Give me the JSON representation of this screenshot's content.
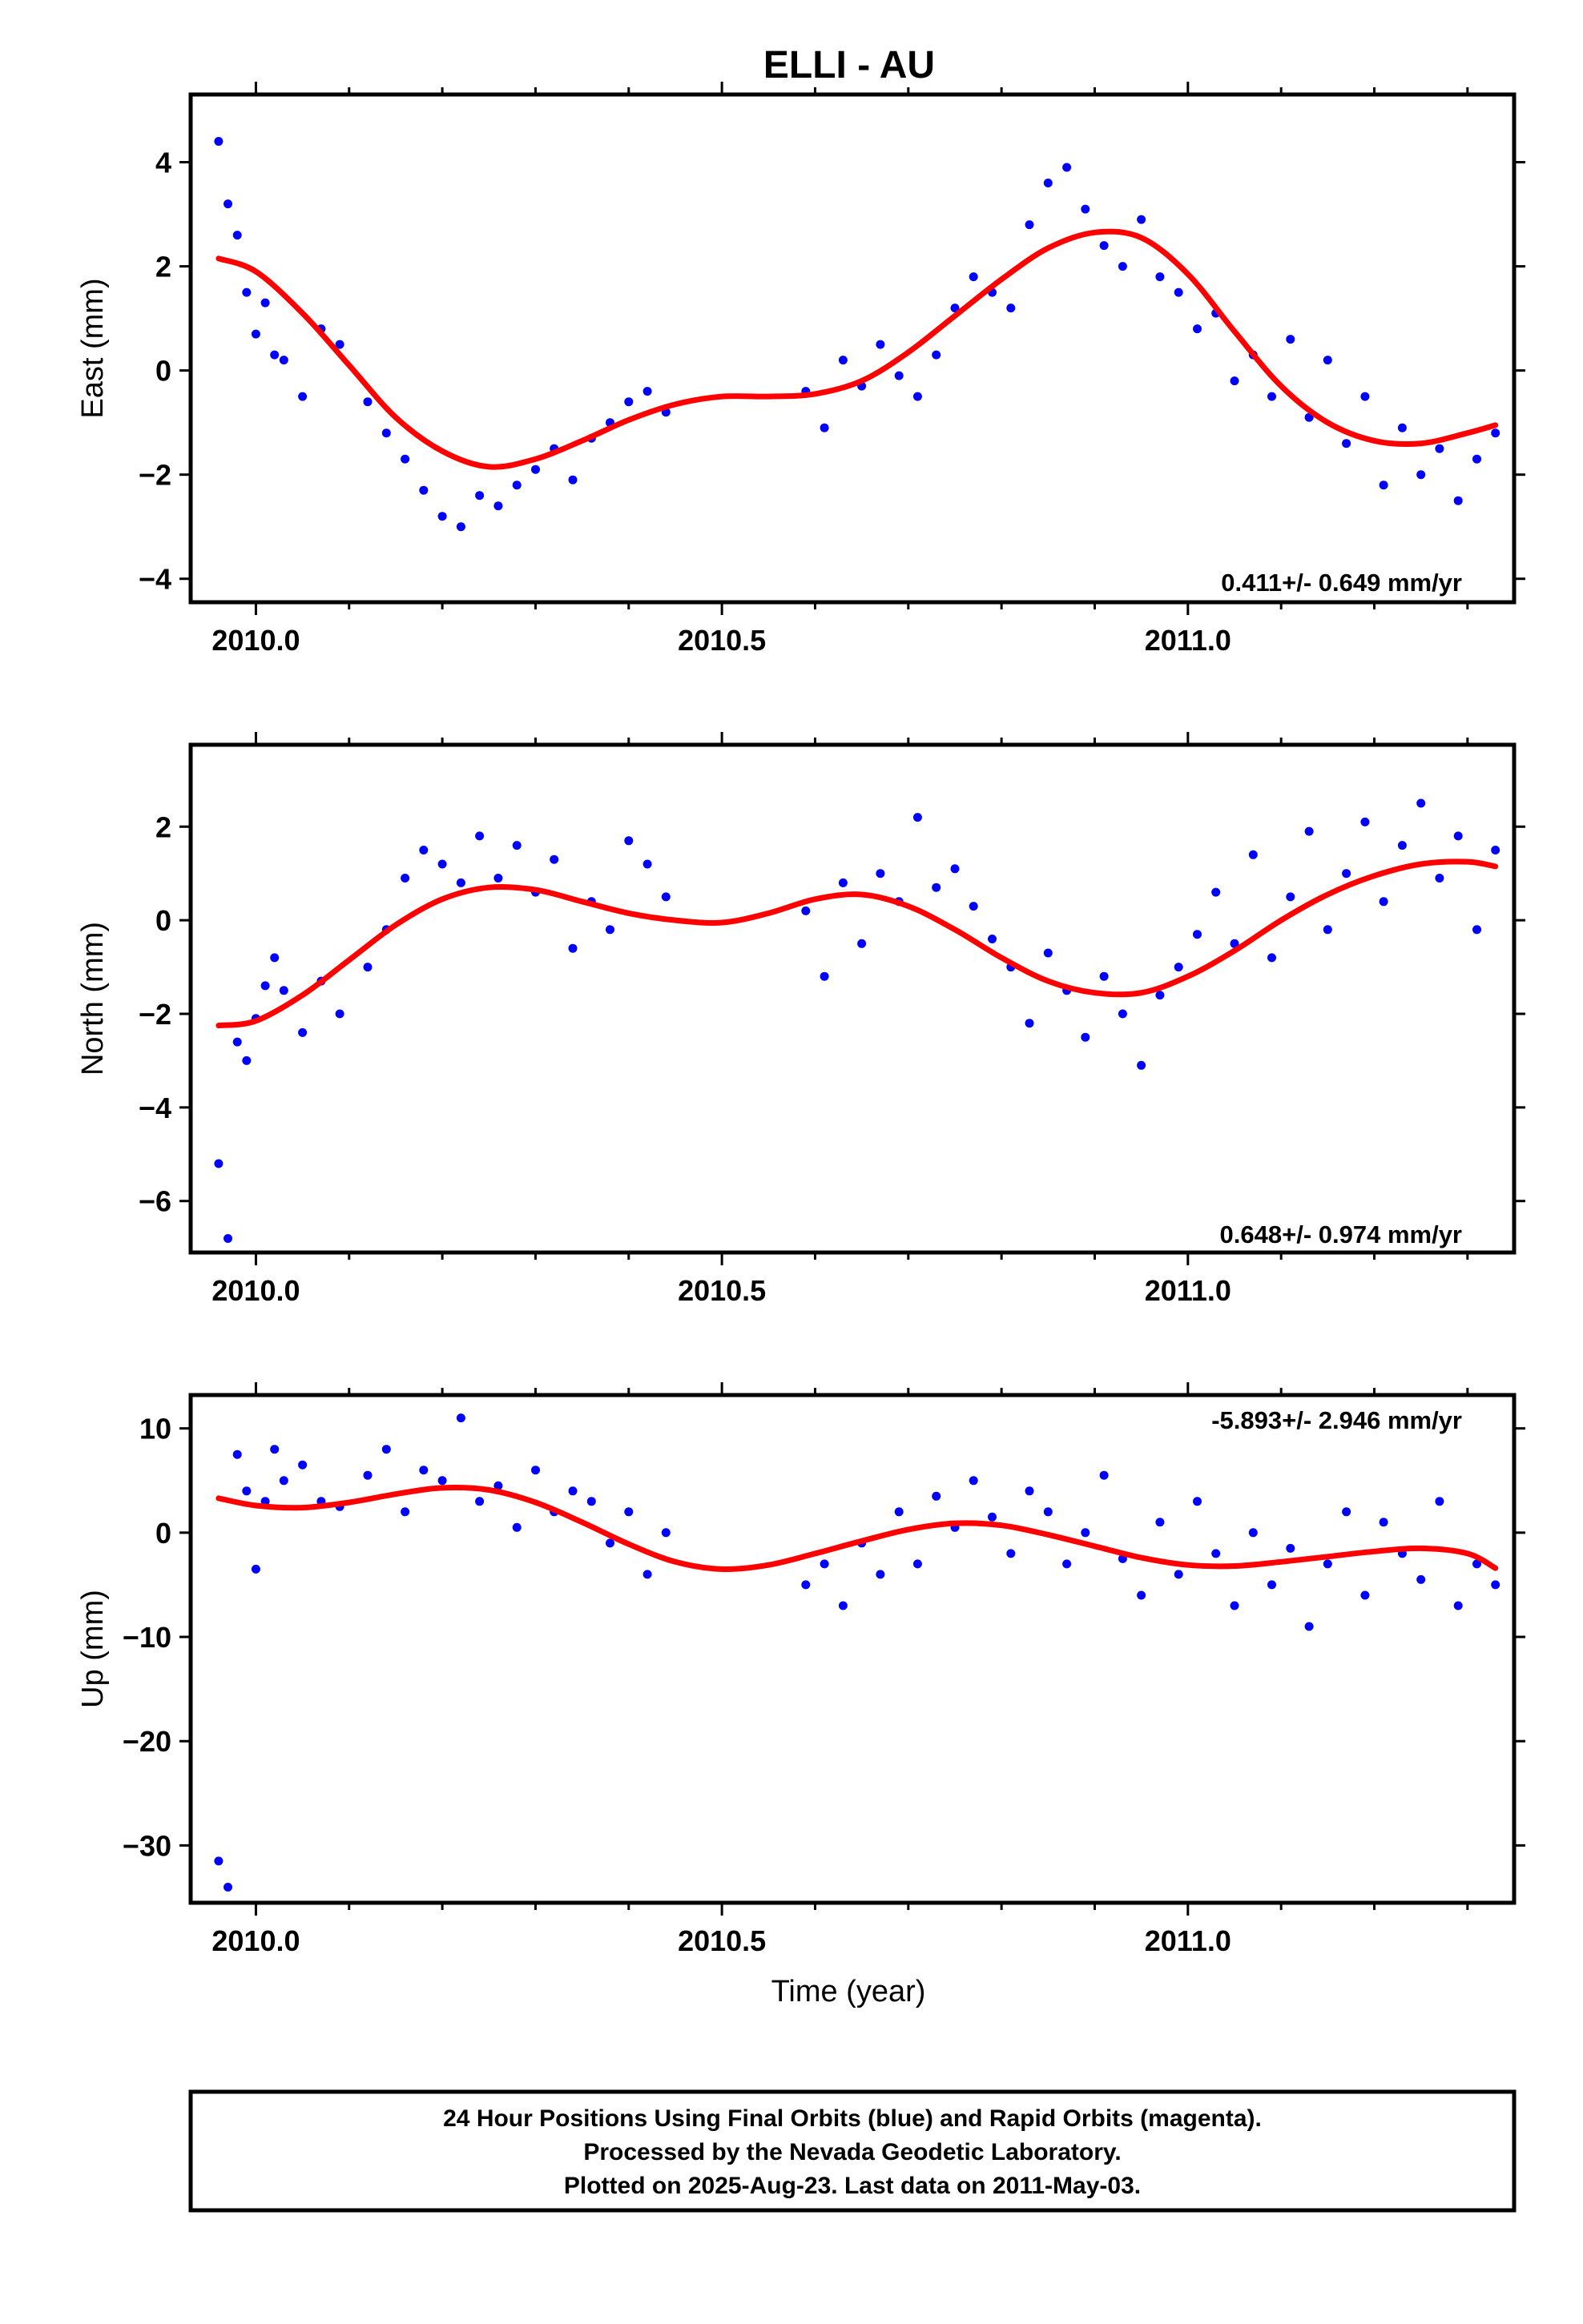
{
  "page_title": "ELLI - AU",
  "footer": {
    "line1": "24 Hour Positions Using Final Orbits (blue) and Rapid Orbits (magenta).",
    "line2": "Processed by the Nevada Geodetic Laboratory.",
    "line3": "Plotted on 2025-Aug-23. Last data on 2011-May-03."
  },
  "colors": {
    "data": "#0000ff",
    "fit": "#ff0000",
    "frame": "#000000"
  },
  "chart_data": [
    {
      "type": "scatter",
      "title": "ELLI - AU",
      "ylabel": "East (mm)",
      "xlabel": "",
      "rate": "0.411+/- 0.649 mm/yr",
      "xlim": [
        2009.93,
        2011.35
      ],
      "ylim": [
        -4.45,
        5.3
      ],
      "x_ticks": [
        "2010.0",
        "2010.5",
        "2011.0"
      ],
      "y_ticks": [
        "4",
        "2",
        "0",
        "−2",
        "−4"
      ],
      "y_tick_values": [
        4,
        2,
        0,
        -2,
        -4
      ],
      "gridlines": false,
      "series": [
        {
          "values": "daily positions (blue dots)",
          "x": [
            2009.96,
            2009.97,
            2009.98,
            2009.99,
            2010.0,
            2010.01,
            2010.02,
            2010.03,
            2010.05,
            2010.07,
            2010.09,
            2010.12,
            2010.14,
            2010.16,
            2010.18,
            2010.2,
            2010.22,
            2010.24,
            2010.26,
            2010.28,
            2010.3,
            2010.32,
            2010.34,
            2010.36,
            2010.38,
            2010.4,
            2010.42,
            2010.44,
            2010.59,
            2010.61,
            2010.63,
            2010.65,
            2010.67,
            2010.69,
            2010.71,
            2010.73,
            2010.75,
            2010.77,
            2010.79,
            2010.81,
            2010.83,
            2010.85,
            2010.87,
            2010.89,
            2010.91,
            2010.93,
            2010.95,
            2010.97,
            2010.99,
            2011.01,
            2011.03,
            2011.05,
            2011.07,
            2011.09,
            2011.11,
            2011.13,
            2011.15,
            2011.17,
            2011.19,
            2011.21,
            2011.23,
            2011.25,
            2011.27,
            2011.29,
            2011.31,
            2011.33
          ],
          "y": [
            4.4,
            3.2,
            2.6,
            1.5,
            0.7,
            1.3,
            0.3,
            0.2,
            -0.5,
            0.8,
            0.5,
            -0.6,
            -1.2,
            -1.7,
            -2.3,
            -2.8,
            -3.0,
            -2.4,
            -2.6,
            -2.2,
            -1.9,
            -1.5,
            -2.1,
            -1.3,
            -1.0,
            -0.6,
            -0.4,
            -0.8,
            -0.4,
            -1.1,
            0.2,
            -0.3,
            0.5,
            -0.1,
            -0.5,
            0.3,
            1.2,
            1.8,
            1.5,
            1.2,
            2.8,
            3.6,
            3.9,
            3.1,
            2.4,
            2.0,
            2.9,
            1.8,
            1.5,
            0.8,
            1.1,
            -0.2,
            0.3,
            -0.5,
            0.6,
            -0.9,
            0.2,
            -1.4,
            -0.5,
            -2.2,
            -1.1,
            -2.0,
            -1.5,
            -2.5,
            -1.7,
            -1.2
          ]
        },
        {
          "name": "",
          "values": "fitted model (red line)",
          "x": [
            2009.96,
            2010.0,
            2010.05,
            2010.1,
            2010.15,
            2010.2,
            2010.25,
            2010.3,
            2010.35,
            2010.4,
            2010.45,
            2010.5,
            2010.55,
            2010.6,
            2010.65,
            2010.7,
            2010.75,
            2010.8,
            2010.85,
            2010.9,
            2010.95,
            2011.0,
            2011.05,
            2011.1,
            2011.15,
            2011.2,
            2011.25,
            2011.3,
            2011.33
          ],
          "y": [
            2.15,
            1.9,
            1.1,
            0.1,
            -0.9,
            -1.55,
            -1.85,
            -1.7,
            -1.35,
            -0.95,
            -0.65,
            -0.5,
            -0.5,
            -0.45,
            -0.2,
            0.35,
            1.05,
            1.75,
            2.35,
            2.65,
            2.55,
            1.85,
            0.75,
            -0.3,
            -1.0,
            -1.35,
            -1.4,
            -1.2,
            -1.05
          ]
        }
      ]
    },
    {
      "type": "scatter",
      "title": "",
      "ylabel": "North (mm)",
      "xlabel": "",
      "rate": "0.648+/- 0.974 mm/yr",
      "xlim": [
        2009.93,
        2011.35
      ],
      "ylim": [
        -7.1,
        3.75
      ],
      "x_ticks": [
        "2010.0",
        "2010.5",
        "2011.0"
      ],
      "y_ticks": [
        "2",
        "0",
        "−2",
        "−4",
        "−6"
      ],
      "y_tick_values": [
        2,
        0,
        -2,
        -4,
        -6
      ],
      "gridlines": false,
      "series": [
        {
          "values": "daily positions (blue dots)",
          "x": [
            2009.96,
            2009.97,
            2009.98,
            2009.99,
            2010.0,
            2010.01,
            2010.02,
            2010.03,
            2010.05,
            2010.07,
            2010.09,
            2010.12,
            2010.14,
            2010.16,
            2010.18,
            2010.2,
            2010.22,
            2010.24,
            2010.26,
            2010.28,
            2010.3,
            2010.32,
            2010.34,
            2010.36,
            2010.38,
            2010.4,
            2010.42,
            2010.44,
            2010.59,
            2010.61,
            2010.63,
            2010.65,
            2010.67,
            2010.69,
            2010.71,
            2010.73,
            2010.75,
            2010.77,
            2010.79,
            2010.81,
            2010.83,
            2010.85,
            2010.87,
            2010.89,
            2010.91,
            2010.93,
            2010.95,
            2010.97,
            2010.99,
            2011.01,
            2011.03,
            2011.05,
            2011.07,
            2011.09,
            2011.11,
            2011.13,
            2011.15,
            2011.17,
            2011.19,
            2011.21,
            2011.23,
            2011.25,
            2011.27,
            2011.29,
            2011.31,
            2011.33
          ],
          "y": [
            -5.2,
            -6.8,
            -2.6,
            -3.0,
            -2.1,
            -1.4,
            -0.8,
            -1.5,
            -2.4,
            -1.3,
            -2.0,
            -1.0,
            -0.2,
            0.9,
            1.5,
            1.2,
            0.8,
            1.8,
            0.9,
            1.6,
            0.6,
            1.3,
            -0.6,
            0.4,
            -0.2,
            1.7,
            1.2,
            0.5,
            0.2,
            -1.2,
            0.8,
            -0.5,
            1.0,
            0.4,
            2.2,
            0.7,
            1.1,
            0.3,
            -0.4,
            -1.0,
            -2.2,
            -0.7,
            -1.5,
            -2.5,
            -1.2,
            -2.0,
            -3.1,
            -1.6,
            -1.0,
            -0.3,
            0.6,
            -0.5,
            1.4,
            -0.8,
            0.5,
            1.9,
            -0.2,
            1.0,
            2.1,
            0.4,
            1.6,
            2.5,
            0.9,
            1.8,
            -0.2,
            1.5
          ]
        },
        {
          "name": "",
          "values": "fitted model (red line)",
          "x": [
            2009.96,
            2010.0,
            2010.05,
            2010.1,
            2010.15,
            2010.2,
            2010.25,
            2010.3,
            2010.35,
            2010.4,
            2010.45,
            2010.5,
            2010.55,
            2010.6,
            2010.65,
            2010.7,
            2010.75,
            2010.8,
            2010.85,
            2010.9,
            2010.95,
            2011.0,
            2011.05,
            2011.1,
            2011.15,
            2011.2,
            2011.25,
            2011.3,
            2011.33
          ],
          "y": [
            -2.25,
            -2.15,
            -1.6,
            -0.85,
            -0.1,
            0.45,
            0.7,
            0.65,
            0.4,
            0.15,
            -0.0,
            -0.05,
            0.15,
            0.45,
            0.55,
            0.3,
            -0.2,
            -0.8,
            -1.3,
            -1.55,
            -1.55,
            -1.2,
            -0.65,
            -0.0,
            0.55,
            0.95,
            1.2,
            1.25,
            1.15
          ]
        }
      ]
    },
    {
      "type": "scatter",
      "title": "",
      "ylabel": "Up (mm)",
      "xlabel": "Time (year)",
      "rate": "-5.893+/- 2.946 mm/yr",
      "xlim": [
        2009.93,
        2011.35
      ],
      "ylim": [
        -35.5,
        13.2
      ],
      "x_ticks": [
        "2010.0",
        "2010.5",
        "2011.0"
      ],
      "y_ticks": [
        "10",
        "0",
        "−10",
        "−20",
        "−30"
      ],
      "y_tick_values": [
        10,
        0,
        -10,
        -20,
        -30
      ],
      "gridlines": false,
      "series": [
        {
          "values": "daily positions (blue dots)",
          "x": [
            2009.96,
            2009.97,
            2009.98,
            2009.99,
            2010.0,
            2010.01,
            2010.02,
            2010.03,
            2010.05,
            2010.07,
            2010.09,
            2010.12,
            2010.14,
            2010.16,
            2010.18,
            2010.2,
            2010.22,
            2010.24,
            2010.26,
            2010.28,
            2010.3,
            2010.32,
            2010.34,
            2010.36,
            2010.38,
            2010.4,
            2010.42,
            2010.44,
            2010.59,
            2010.61,
            2010.63,
            2010.65,
            2010.67,
            2010.69,
            2010.71,
            2010.73,
            2010.75,
            2010.77,
            2010.79,
            2010.81,
            2010.83,
            2010.85,
            2010.87,
            2010.89,
            2010.91,
            2010.93,
            2010.95,
            2010.97,
            2010.99,
            2011.01,
            2011.03,
            2011.05,
            2011.07,
            2011.09,
            2011.11,
            2011.13,
            2011.15,
            2011.17,
            2011.19,
            2011.21,
            2011.23,
            2011.25,
            2011.27,
            2011.29,
            2011.31,
            2011.33
          ],
          "y": [
            -31.5,
            -34.0,
            7.5,
            4.0,
            -3.5,
            3.0,
            8.0,
            5.0,
            6.5,
            3.0,
            2.5,
            5.5,
            8.0,
            2.0,
            6.0,
            5.0,
            11.0,
            3.0,
            4.5,
            0.5,
            6.0,
            2.0,
            4.0,
            3.0,
            -1.0,
            2.0,
            -4.0,
            0.0,
            -5.0,
            -3.0,
            -7.0,
            -1.0,
            -4.0,
            2.0,
            -3.0,
            3.5,
            0.5,
            5.0,
            1.5,
            -2.0,
            4.0,
            2.0,
            -3.0,
            0.0,
            5.5,
            -2.5,
            -6.0,
            1.0,
            -4.0,
            3.0,
            -2.0,
            -7.0,
            0.0,
            -5.0,
            -1.5,
            -9.0,
            -3.0,
            2.0,
            -6.0,
            1.0,
            -2.0,
            -4.5,
            3.0,
            -7.0,
            -3.0,
            -5.0
          ]
        },
        {
          "name": "",
          "values": "fitted model (red line)",
          "x": [
            2009.96,
            2010.0,
            2010.05,
            2010.1,
            2010.15,
            2010.2,
            2010.25,
            2010.3,
            2010.35,
            2010.4,
            2010.45,
            2010.5,
            2010.55,
            2010.6,
            2010.65,
            2010.7,
            2010.75,
            2010.8,
            2010.85,
            2010.9,
            2010.95,
            2011.0,
            2011.05,
            2011.1,
            2011.15,
            2011.2,
            2011.25,
            2011.3,
            2011.33
          ],
          "y": [
            3.3,
            2.6,
            2.4,
            2.9,
            3.7,
            4.3,
            4.1,
            2.9,
            1.0,
            -1.1,
            -2.8,
            -3.5,
            -3.1,
            -2.0,
            -0.8,
            0.3,
            0.9,
            0.7,
            -0.2,
            -1.3,
            -2.4,
            -3.1,
            -3.2,
            -2.8,
            -2.3,
            -1.8,
            -1.5,
            -2.0,
            -3.4
          ]
        }
      ]
    }
  ]
}
